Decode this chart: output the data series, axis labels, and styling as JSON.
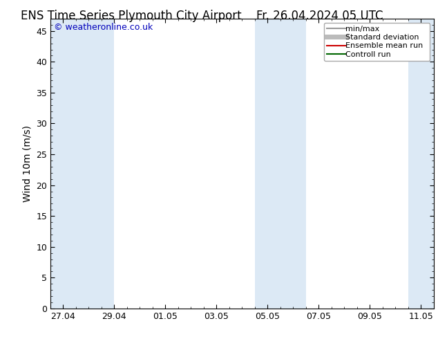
{
  "title_left": "ENS Time Series Plymouth City Airport",
  "title_right": "Fr. 26.04.2024 05 UTC",
  "ylabel": "Wind 10m (m/s)",
  "copyright": "© weatheronline.co.uk",
  "y_min": 0,
  "y_max": 47,
  "y_ticks": [
    0,
    5,
    10,
    15,
    20,
    25,
    30,
    35,
    40,
    45
  ],
  "x_tick_labels": [
    "27.04",
    "29.04",
    "01.05",
    "03.05",
    "05.05",
    "07.05",
    "09.05",
    "11.05"
  ],
  "x_tick_positions": [
    0,
    2,
    4,
    6,
    8,
    10,
    12,
    14
  ],
  "x_min": -0.5,
  "x_max": 14.5,
  "shaded_bands": [
    {
      "x_start": -0.5,
      "x_end": 2.0
    },
    {
      "x_start": 7.5,
      "x_end": 9.5
    },
    {
      "x_start": 13.5,
      "x_end": 14.5
    }
  ],
  "shade_color": "#dce9f5",
  "background_color": "#ffffff",
  "legend_items": [
    {
      "label": "min/max",
      "color": "#999999",
      "lw": 1.5
    },
    {
      "label": "Standard deviation",
      "color": "#bbbbbb",
      "lw": 5
    },
    {
      "label": "Ensemble mean run",
      "color": "#cc0000",
      "lw": 1.5
    },
    {
      "label": "Controll run",
      "color": "#006600",
      "lw": 1.5
    }
  ],
  "tick_color": "#000000",
  "title_fontsize": 12,
  "label_fontsize": 10,
  "tick_fontsize": 9,
  "copyright_color": "#0000bb",
  "copyright_fontsize": 9
}
